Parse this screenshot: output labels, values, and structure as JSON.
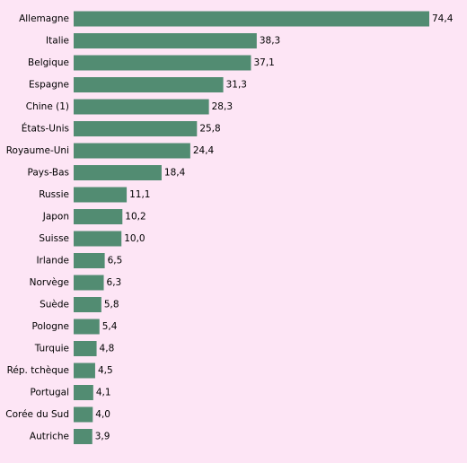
{
  "chart_data": {
    "type": "bar",
    "orientation": "horizontal",
    "color": "#528c72",
    "categories": [
      "Allemagne",
      "Italie",
      "Belgique",
      "Espagne",
      "Chine (1)",
      "États-Unis",
      "Royaume-Uni",
      "Pays-Bas",
      "Russie",
      "Japon",
      "Suisse",
      "Irlande",
      "Norvège",
      "Suède",
      "Pologne",
      "Turquie",
      "Rép. tchèque",
      "Portugal",
      "Corée du Sud",
      "Autriche"
    ],
    "values": [
      74.4,
      38.3,
      37.1,
      31.3,
      28.3,
      25.8,
      24.4,
      18.4,
      11.1,
      10.2,
      10.0,
      6.5,
      6.3,
      5.8,
      5.4,
      4.8,
      4.5,
      4.1,
      4.0,
      3.9
    ],
    "value_labels": [
      "74,4",
      "38,3",
      "37,1",
      "31,3",
      "28,3",
      "25,8",
      "24,4",
      "18,4",
      "11,1",
      "10,2",
      "10,0",
      "6,5",
      "6,3",
      "5,8",
      "5,4",
      "4,8",
      "4,5",
      "4,1",
      "4,0",
      "3,9"
    ]
  }
}
